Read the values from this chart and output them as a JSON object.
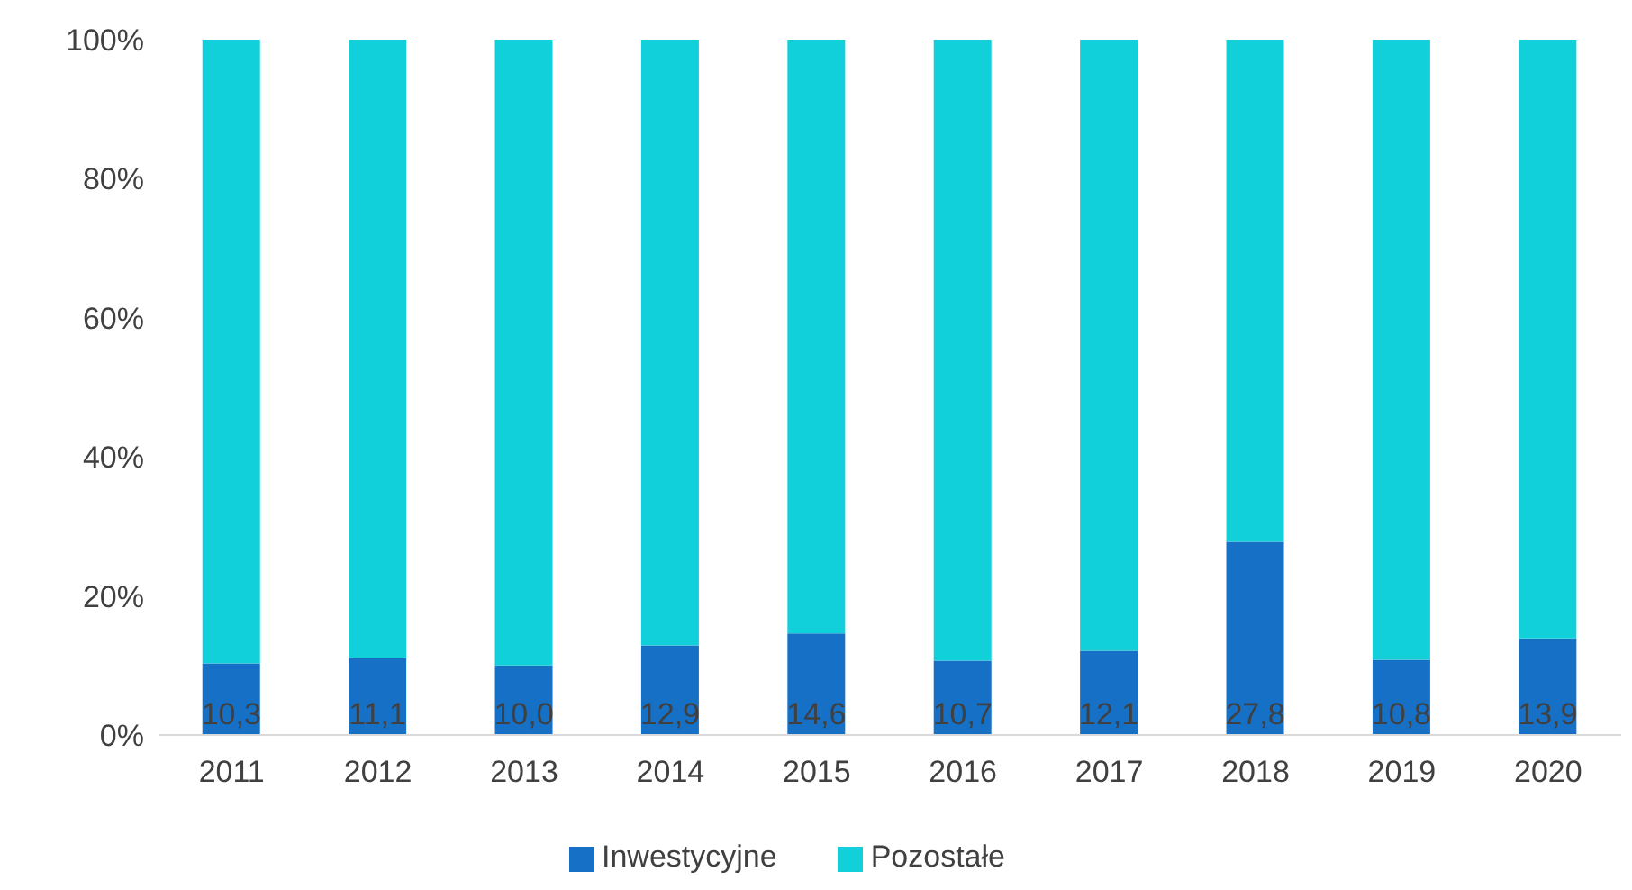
{
  "chart_data": {
    "type": "bar",
    "stacked": true,
    "categories": [
      "2011",
      "2012",
      "2013",
      "2014",
      "2015",
      "2016",
      "2017",
      "2018",
      "2019",
      "2020"
    ],
    "series": [
      {
        "name": "Inwestycyjne",
        "color": "#1570c6",
        "values": [
          10.3,
          11.1,
          10.0,
          12.9,
          14.6,
          10.7,
          12.1,
          27.8,
          10.8,
          13.9
        ],
        "value_labels": [
          "10,3",
          "11,1",
          "10,0",
          "12,9",
          "14,6",
          "10,7",
          "12,1",
          "27,8",
          "10,8",
          "13,9"
        ]
      },
      {
        "name": "Pozostałe",
        "color": "#12d0d9",
        "values": [
          89.7,
          88.9,
          90.0,
          87.1,
          85.4,
          89.3,
          87.9,
          72.2,
          89.2,
          86.1
        ]
      }
    ],
    "ylim": [
      0,
      100
    ],
    "yticks": [
      {
        "value": 0,
        "label": "0%"
      },
      {
        "value": 20,
        "label": "20%"
      },
      {
        "value": 40,
        "label": "40%"
      },
      {
        "value": 60,
        "label": "60%"
      },
      {
        "value": 80,
        "label": "80%"
      },
      {
        "value": 100,
        "label": "100%"
      }
    ],
    "legend": "bottom"
  }
}
